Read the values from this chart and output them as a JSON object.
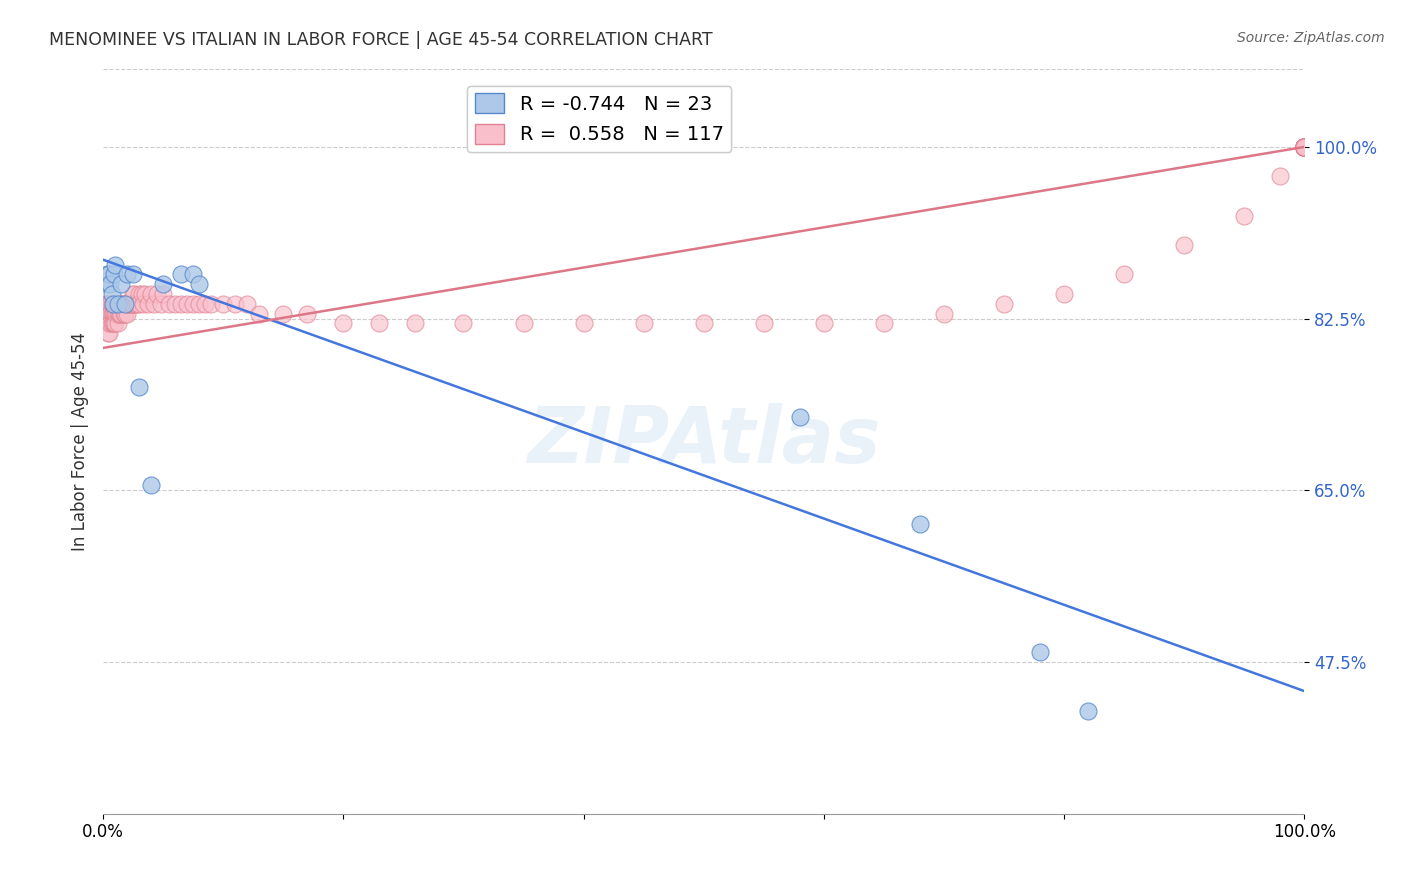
{
  "title": "MENOMINEE VS ITALIAN IN LABOR FORCE | AGE 45-54 CORRELATION CHART",
  "source": "Source: ZipAtlas.com",
  "ylabel": "In Labor Force | Age 45-54",
  "xlim": [
    0.0,
    1.0
  ],
  "ylim": [
    0.32,
    1.08
  ],
  "yticks": [
    0.475,
    0.65,
    0.825,
    1.0
  ],
  "ytick_labels": [
    "47.5%",
    "65.0%",
    "82.5%",
    "100.0%"
  ],
  "xticks": [
    0.0,
    0.2,
    0.4,
    0.6,
    0.8,
    1.0
  ],
  "xtick_labels": [
    "0.0%",
    "",
    "",
    "",
    "",
    "100.0%"
  ],
  "menominee_R": -0.744,
  "menominee_N": 23,
  "italians_R": 0.558,
  "italians_N": 117,
  "menominee_color": "#adc8e8",
  "italians_color": "#f9c0cb",
  "menominee_edge_color": "#5588cc",
  "italians_edge_color": "#e08090",
  "menominee_line_color": "#4477dd",
  "italians_line_color": "#dd7788",
  "background_color": "#ffffff",
  "grid_color": "#cccccc",
  "menominee_x": [
    0.003,
    0.004,
    0.005,
    0.006,
    0.007,
    0.008,
    0.009,
    0.01,
    0.012,
    0.015,
    0.018,
    0.02,
    0.025,
    0.03,
    0.04,
    0.05,
    0.065,
    0.075,
    0.08,
    0.58,
    0.68,
    0.78,
    0.82
  ],
  "menominee_y": [
    0.87,
    0.86,
    0.87,
    0.86,
    0.85,
    0.84,
    0.87,
    0.88,
    0.84,
    0.86,
    0.84,
    0.87,
    0.87,
    0.755,
    0.655,
    0.86,
    0.87,
    0.87,
    0.86,
    0.725,
    0.615,
    0.485,
    0.425
  ],
  "menominee_line_x": [
    0.0,
    1.0
  ],
  "menominee_line_y": [
    0.885,
    0.445
  ],
  "italians_line_x": [
    0.0,
    1.0
  ],
  "italians_line_y": [
    0.795,
    1.0
  ],
  "italians_x": [
    0.002,
    0.002,
    0.003,
    0.003,
    0.003,
    0.004,
    0.004,
    0.004,
    0.005,
    0.005,
    0.005,
    0.005,
    0.006,
    0.006,
    0.006,
    0.007,
    0.007,
    0.007,
    0.008,
    0.008,
    0.008,
    0.009,
    0.009,
    0.009,
    0.01,
    0.01,
    0.01,
    0.011,
    0.011,
    0.012,
    0.012,
    0.012,
    0.013,
    0.013,
    0.014,
    0.014,
    0.015,
    0.015,
    0.016,
    0.017,
    0.017,
    0.018,
    0.018,
    0.019,
    0.02,
    0.02,
    0.021,
    0.022,
    0.023,
    0.024,
    0.025,
    0.025,
    0.026,
    0.027,
    0.028,
    0.03,
    0.03,
    0.032,
    0.033,
    0.035,
    0.037,
    0.04,
    0.042,
    0.045,
    0.048,
    0.05,
    0.055,
    0.06,
    0.065,
    0.07,
    0.075,
    0.08,
    0.085,
    0.09,
    0.1,
    0.11,
    0.12,
    0.13,
    0.15,
    0.17,
    0.2,
    0.23,
    0.26,
    0.3,
    0.35,
    0.4,
    0.45,
    0.5,
    0.55,
    0.6,
    0.65,
    0.7,
    0.75,
    0.8,
    0.85,
    0.9,
    0.95,
    0.98,
    1.0,
    1.0,
    1.0,
    1.0,
    1.0,
    1.0,
    1.0,
    1.0,
    1.0,
    1.0,
    1.0,
    1.0,
    1.0,
    1.0,
    1.0,
    1.0,
    1.0,
    1.0,
    1.0
  ],
  "italians_y": [
    0.84,
    0.83,
    0.84,
    0.83,
    0.82,
    0.83,
    0.82,
    0.81,
    0.84,
    0.83,
    0.82,
    0.81,
    0.84,
    0.83,
    0.82,
    0.84,
    0.83,
    0.82,
    0.84,
    0.83,
    0.82,
    0.84,
    0.83,
    0.82,
    0.84,
    0.83,
    0.82,
    0.84,
    0.83,
    0.84,
    0.83,
    0.82,
    0.84,
    0.83,
    0.84,
    0.83,
    0.84,
    0.83,
    0.84,
    0.84,
    0.83,
    0.84,
    0.83,
    0.84,
    0.84,
    0.83,
    0.84,
    0.84,
    0.84,
    0.84,
    0.85,
    0.84,
    0.85,
    0.84,
    0.84,
    0.85,
    0.84,
    0.85,
    0.84,
    0.85,
    0.84,
    0.85,
    0.84,
    0.85,
    0.84,
    0.85,
    0.84,
    0.84,
    0.84,
    0.84,
    0.84,
    0.84,
    0.84,
    0.84,
    0.84,
    0.84,
    0.84,
    0.83,
    0.83,
    0.83,
    0.82,
    0.82,
    0.82,
    0.82,
    0.82,
    0.82,
    0.82,
    0.82,
    0.82,
    0.82,
    0.82,
    0.83,
    0.84,
    0.85,
    0.87,
    0.9,
    0.93,
    0.97,
    1.0,
    1.0,
    1.0,
    1.0,
    1.0,
    1.0,
    1.0,
    1.0,
    1.0,
    1.0,
    1.0,
    1.0,
    1.0,
    1.0,
    1.0,
    1.0,
    1.0,
    1.0,
    1.0
  ]
}
